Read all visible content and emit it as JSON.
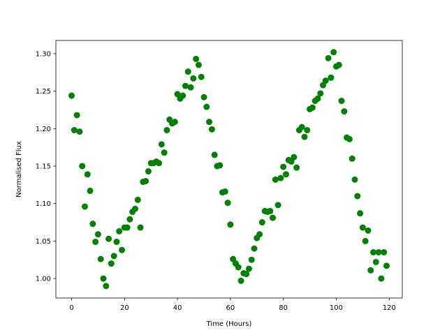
{
  "chart_data": {
    "type": "scatter",
    "color": "#008000",
    "xlabel": "Time (Hours)",
    "ylabel": "Normalised Flux",
    "x": [
      0,
      1,
      2,
      3,
      4,
      5,
      6,
      7,
      8,
      9,
      10,
      11,
      12,
      13,
      14,
      15,
      16,
      17,
      18,
      19,
      20,
      21,
      22,
      23,
      24,
      25,
      26,
      27,
      28,
      29,
      30,
      31,
      32,
      33,
      34,
      35,
      36,
      37,
      38,
      39,
      40,
      41,
      42,
      43,
      44,
      45,
      46,
      47,
      48,
      49,
      50,
      51,
      52,
      53,
      54,
      55,
      56,
      57,
      58,
      59,
      60,
      61,
      62,
      63,
      64,
      65,
      66,
      67,
      68,
      69,
      70,
      71,
      72,
      73,
      74,
      75,
      76,
      77,
      78,
      79,
      80,
      81,
      82,
      83,
      84,
      85,
      86,
      87,
      88,
      89,
      90,
      91,
      92,
      93,
      94,
      95,
      96,
      97,
      98,
      99,
      100,
      101,
      102,
      103,
      104,
      105,
      106,
      107,
      108,
      109,
      110,
      111,
      112,
      113,
      114,
      115,
      116,
      117,
      118,
      119
    ],
    "values": [
      1.244,
      1.198,
      1.218,
      1.196,
      1.15,
      1.096,
      1.139,
      1.117,
      1.073,
      1.049,
      1.059,
      1.026,
      1.0,
      0.99,
      1.053,
      1.02,
      1.03,
      1.049,
      1.063,
      1.038,
      1.068,
      1.068,
      1.079,
      1.089,
      1.093,
      1.105,
      1.068,
      1.129,
      1.13,
      1.143,
      1.154,
      1.154,
      1.156,
      1.154,
      1.179,
      1.168,
      1.198,
      1.212,
      1.207,
      1.209,
      1.246,
      1.24,
      1.244,
      1.257,
      1.276,
      1.255,
      1.267,
      1.293,
      1.285,
      1.269,
      1.242,
      1.229,
      1.209,
      1.199,
      1.165,
      1.15,
      1.151,
      1.115,
      1.116,
      1.101,
      1.072,
      1.026,
      1.02,
      1.015,
      0.997,
      1.007,
      1.006,
      1.013,
      1.025,
      1.04,
      1.054,
      1.059,
      1.075,
      1.09,
      1.089,
      1.09,
      1.081,
      1.132,
      1.098,
      1.134,
      1.149,
      1.139,
      1.158,
      1.156,
      1.162,
      1.148,
      1.198,
      1.202,
      1.189,
      1.198,
      1.226,
      1.228,
      1.237,
      1.24,
      1.247,
      1.258,
      1.264,
      1.294,
      1.268,
      1.302,
      1.283,
      1.285,
      1.237,
      1.223,
      1.188,
      1.186,
      1.16,
      1.132,
      1.11,
      1.087,
      1.068,
      1.05,
      1.064,
      1.011,
      1.035,
      1.022,
      1.035,
      1.0,
      1.035,
      1.017
    ],
    "xlim": [
      -5.95,
      124.95
    ],
    "xticks": [
      0,
      20,
      40,
      60,
      80,
      100,
      120
    ],
    "ylim": [
      0.974,
      1.3176
    ],
    "yticks": [
      {
        "value": 1,
        "label": "1.00"
      },
      1.05,
      {
        "value": 1.1,
        "label": "1.10"
      },
      1.15,
      {
        "value": 1.2,
        "label": "1.20"
      },
      1.25,
      {
        "value": 1.3,
        "label": "1.30"
      }
    ],
    "grid": false
  }
}
